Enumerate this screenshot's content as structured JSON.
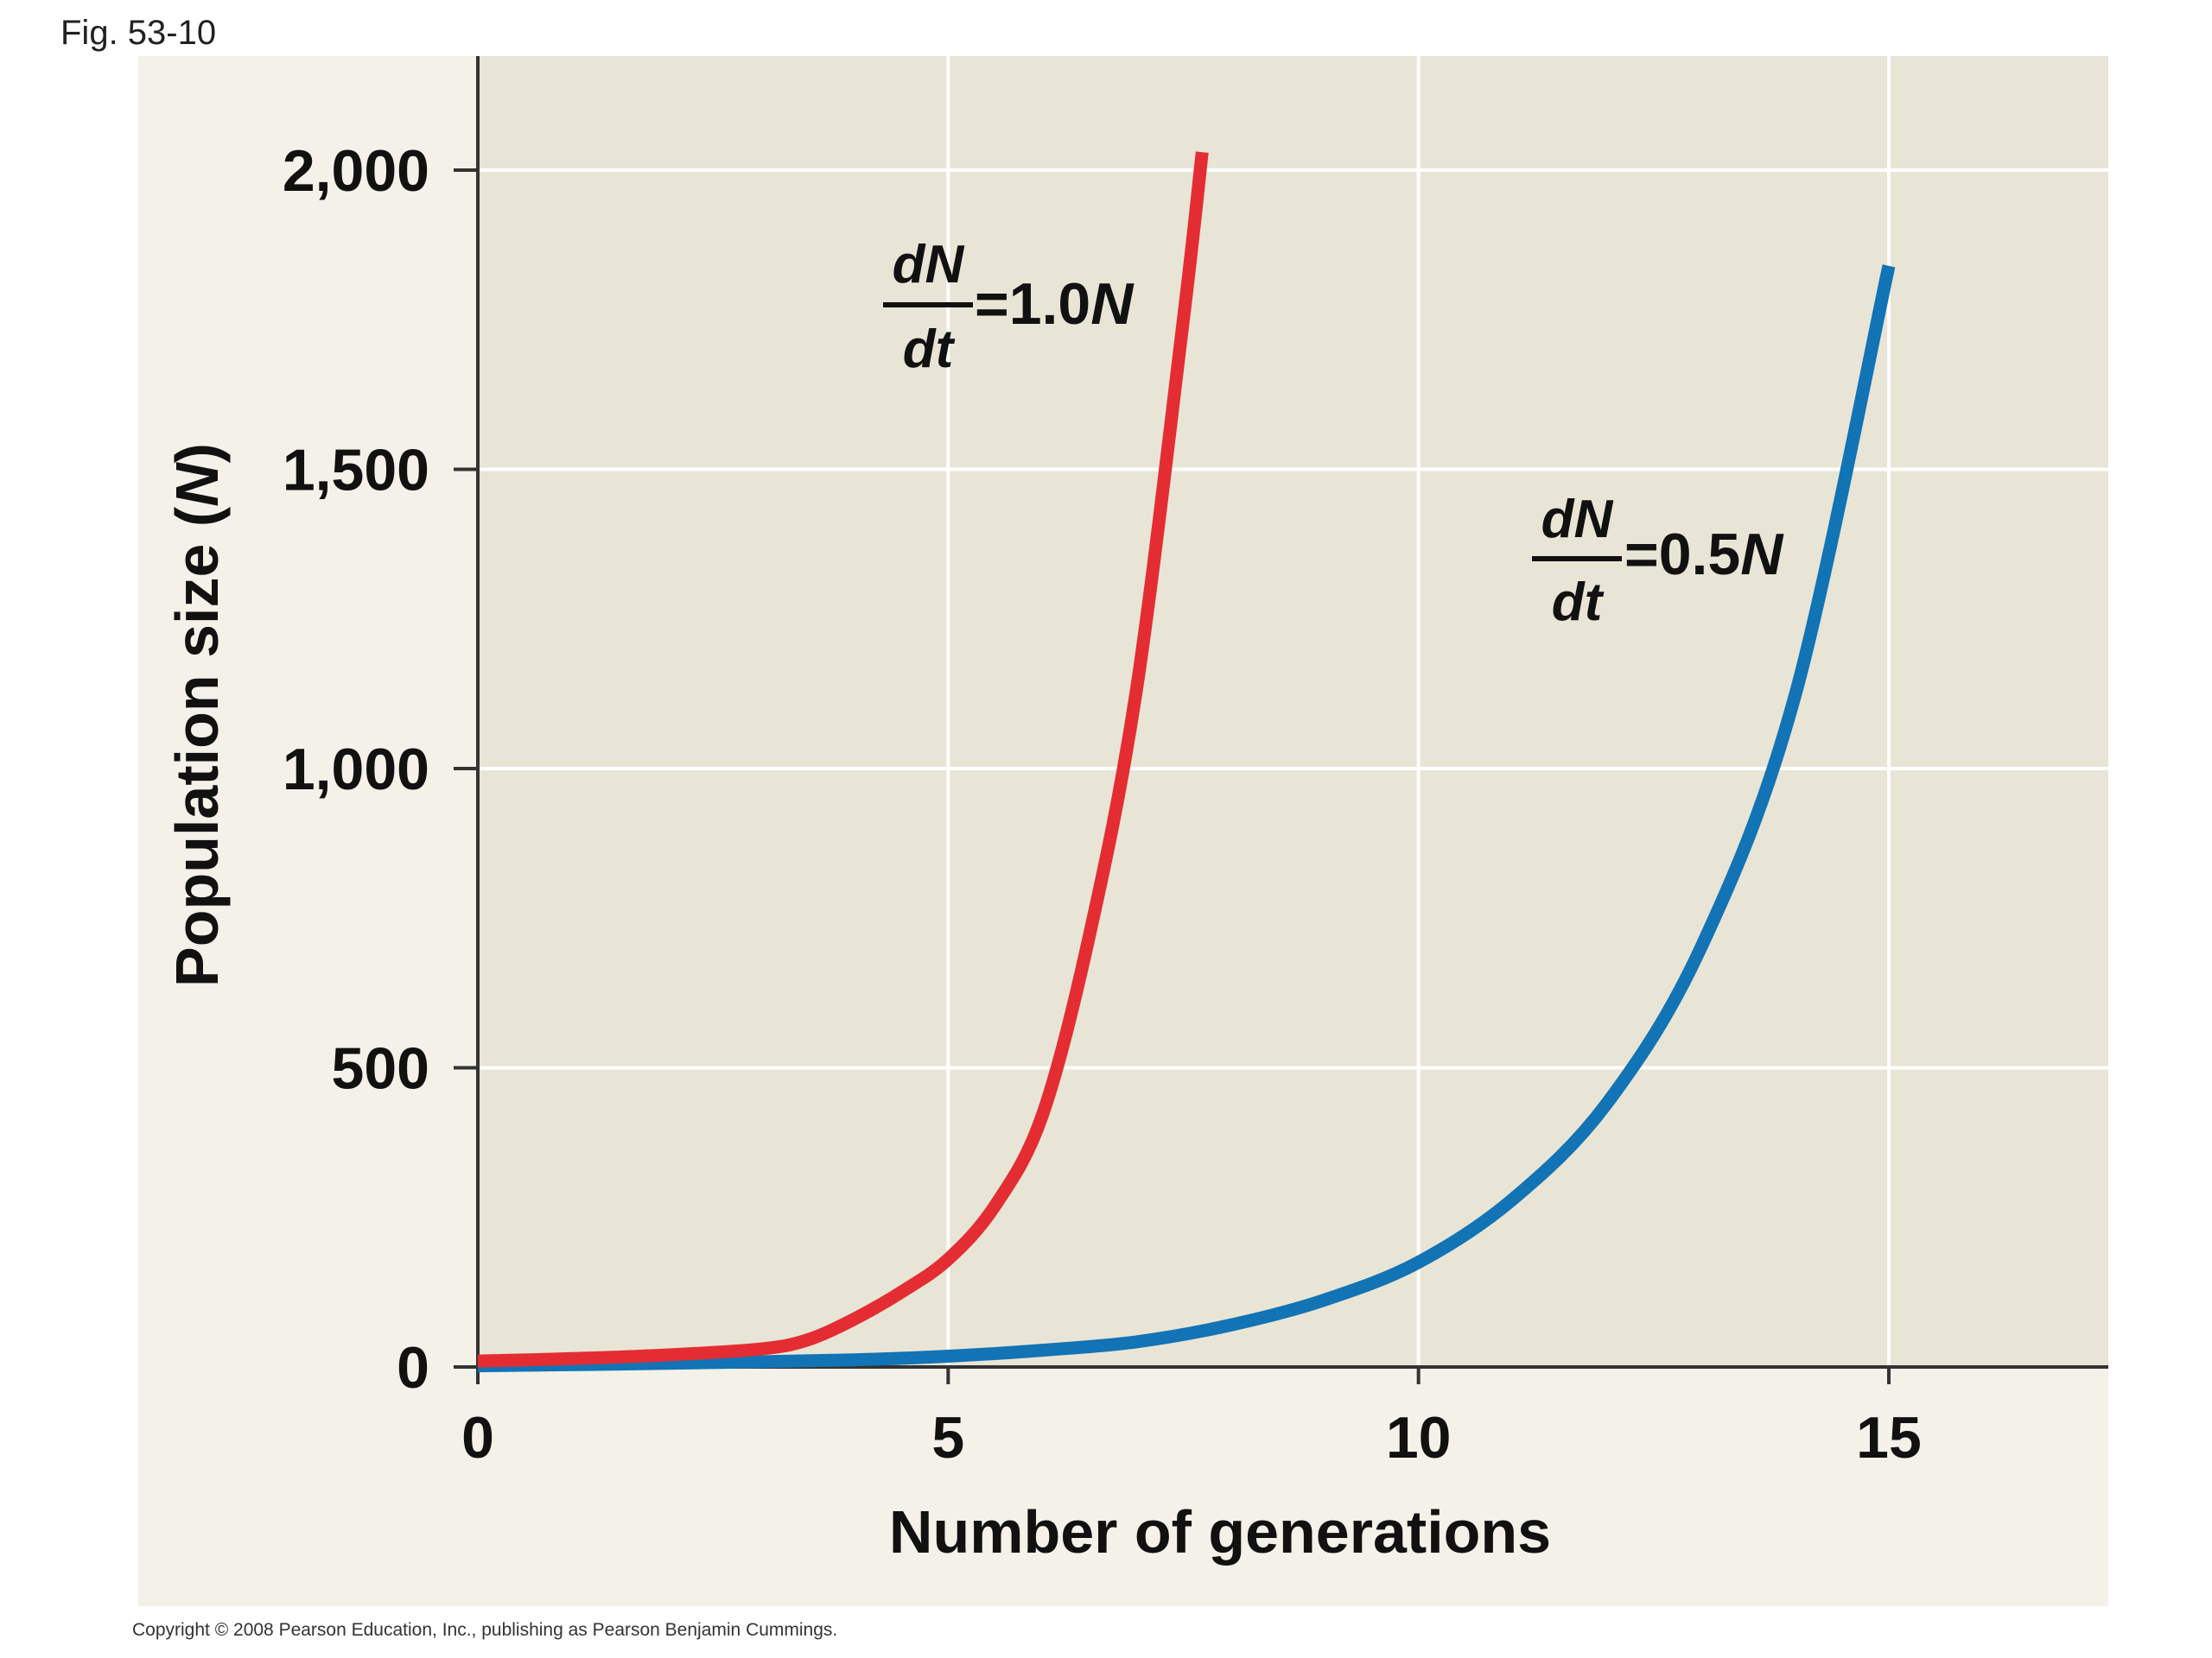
{
  "figure_label": "Fig. 53-10",
  "copyright": "Copyright © 2008 Pearson Education, Inc., publishing as Pearson Benjamin Cummings.",
  "colors": {
    "frame_background": "#f3f1e8",
    "plot_background": "#e8e5d6",
    "gridline": "#ffffff",
    "axis": "#333333",
    "series_1_0N": "#e42d32",
    "series_0_5N": "#1273b5"
  },
  "chart_data": {
    "type": "line",
    "title": "",
    "xlabel": "Number of generations",
    "ylabel": "Population size (N)",
    "xlim": [
      0,
      17.3
    ],
    "ylim": [
      0,
      2200
    ],
    "x_ticks": [
      0,
      5,
      10,
      15
    ],
    "x_tick_labels": [
      "0",
      "5",
      "10",
      "15"
    ],
    "y_ticks": [
      0,
      500,
      1000,
      1500,
      2000
    ],
    "y_tick_labels": [
      "0",
      "500",
      "1,000",
      "1,500",
      "2,000"
    ],
    "grid": true,
    "legend": "none",
    "series": [
      {
        "name": "dN/dt = 1.0N",
        "label_parts": {
          "numerator": "dN",
          "denominator": "dt",
          "rhs": "=1.0N"
        },
        "x": [
          0,
          1,
          2,
          3,
          3.5,
          4,
          4.5,
          5,
          5.5,
          6,
          6.5,
          7,
          7.5,
          7.7
        ],
        "y": [
          10,
          14,
          20,
          30,
          45,
          80,
          125,
          180,
          270,
          420,
          720,
          1130,
          1750,
          2030
        ]
      },
      {
        "name": "dN/dt = 0.5N",
        "label_parts": {
          "numerator": "dN",
          "denominator": "dt",
          "rhs": "=0.5N"
        },
        "x": [
          0,
          2,
          4,
          5,
          6,
          7,
          8,
          9,
          10,
          11,
          12,
          13,
          14,
          15
        ],
        "y": [
          2,
          6,
          12,
          18,
          28,
          42,
          70,
          112,
          175,
          280,
          440,
          700,
          1120,
          1840
        ]
      }
    ]
  }
}
